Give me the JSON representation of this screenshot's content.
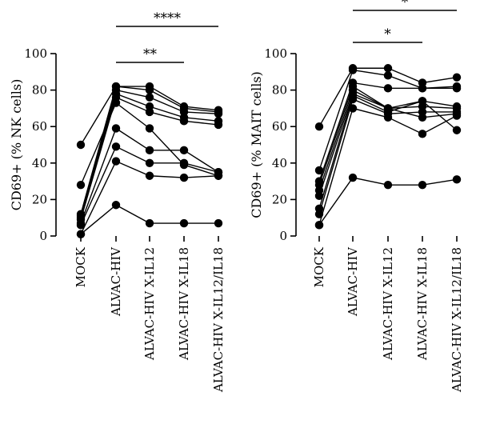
{
  "chart_data": [
    {
      "type": "line",
      "ylabel": "CD69+ (% NK cells)",
      "ylim": [
        0,
        100
      ],
      "yticks": [
        0,
        20,
        40,
        60,
        80,
        100
      ],
      "categories": [
        "MOCK",
        "ALVAC-HIV",
        "ALVAC-HIV X-IL12",
        "ALVAC-HIV X-IL18",
        "ALVAC-HIV X-IL12/IL18"
      ],
      "series": [
        {
          "values": [
            50,
            82,
            82,
            71,
            69
          ]
        },
        {
          "values": [
            12,
            82,
            80,
            70,
            68
          ]
        },
        {
          "values": [
            11,
            80,
            76,
            68,
            67
          ]
        },
        {
          "values": [
            10,
            78,
            71,
            65,
            63
          ]
        },
        {
          "values": [
            9,
            76,
            68,
            63,
            61
          ]
        },
        {
          "values": [
            28,
            73,
            59,
            39,
            33
          ]
        },
        {
          "values": [
            7,
            59,
            47,
            47,
            35
          ]
        },
        {
          "values": [
            6,
            49,
            40,
            40,
            35
          ]
        },
        {
          "values": [
            1,
            41,
            33,
            32,
            33
          ]
        },
        {
          "values": [
            1,
            17,
            7,
            7,
            7
          ]
        }
      ],
      "significance": [
        {
          "from": "ALVAC-HIV",
          "to": "ALVAC-HIV X-IL18",
          "label": "**"
        },
        {
          "from": "ALVAC-HIV",
          "to": "ALVAC-HIV X-IL12/IL18",
          "label": "****"
        }
      ]
    },
    {
      "type": "line",
      "ylabel": "CD69+ (% MAIT cells)",
      "ylim": [
        0,
        100
      ],
      "yticks": [
        0,
        20,
        40,
        60,
        80,
        100
      ],
      "categories": [
        "MOCK",
        "ALVAC-HIV",
        "ALVAC-HIV X-IL12",
        "ALVAC-HIV X-IL18",
        "ALVAC-HIV X-IL12/IL18"
      ],
      "series": [
        {
          "values": [
            60,
            92,
            92,
            84,
            87
          ]
        },
        {
          "values": [
            36,
            91,
            88,
            81,
            82
          ]
        },
        {
          "values": [
            30,
            84,
            81,
            81,
            81
          ]
        },
        {
          "values": [
            25,
            80,
            70,
            74,
            71
          ]
        },
        {
          "values": [
            22,
            78,
            70,
            71,
            70
          ]
        },
        {
          "values": [
            15,
            77,
            68,
            74,
            58
          ]
        },
        {
          "values": [
            12,
            75,
            67,
            68,
            68
          ]
        },
        {
          "values": [
            6,
            70,
            65,
            56,
            66
          ]
        },
        {
          "values": [
            28,
            82,
            70,
            65,
            67
          ]
        },
        {
          "values": [
            6,
            32,
            28,
            28,
            31
          ]
        }
      ],
      "significance": [
        {
          "from": "ALVAC-HIV",
          "to": "ALVAC-HIV X-IL18",
          "label": "*"
        },
        {
          "from": "ALVAC-HIV",
          "to": "ALVAC-HIV X-IL12/IL18",
          "label": "*"
        }
      ]
    }
  ],
  "colors": {
    "line": "#000000",
    "marker": "#000000"
  }
}
